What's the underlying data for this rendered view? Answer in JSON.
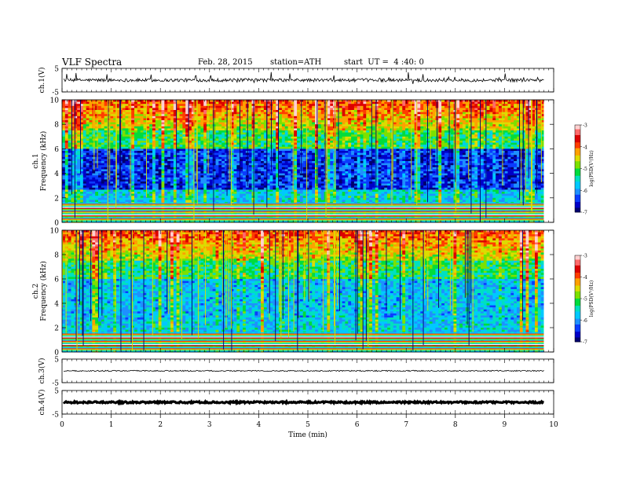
{
  "header": {
    "title": "VLF Spectra",
    "date": "Feb. 28, 2015",
    "station": "station=ATH",
    "start_ut": "start  UT =  4 :40: 0"
  },
  "colors": {
    "colormap": [
      "#000070",
      "#0000c8",
      "#0a3cff",
      "#1e90ff",
      "#00c8ff",
      "#00e0c0",
      "#00dc3c",
      "#7ce000",
      "#dcdc00",
      "#ffa000",
      "#ff3c00",
      "#dc0000",
      "#ff6a6a",
      "#ffd0d0"
    ]
  },
  "chart_data": [
    {
      "type": "line",
      "name": "ch.1(V)",
      "ylabel": "ch.1(V)",
      "ylim": [
        -5,
        5
      ],
      "yticks": [
        "5",
        "-5"
      ],
      "xlim": [
        0,
        10
      ],
      "trace_level": 0,
      "trace_amplitude": 0.7,
      "trace_spikes": true
    },
    {
      "type": "heatmap",
      "name": "ch.1",
      "ylabel": "ch.1\nFrequency (kHz)",
      "ylabel_lines": [
        "ch.1",
        "Frequency (kHz)"
      ],
      "ylim": [
        0,
        10
      ],
      "yticks": [
        "0",
        "2",
        "4",
        "6",
        "8",
        "10"
      ],
      "xlim": [
        0,
        10
      ],
      "data_end_min": 9.8,
      "colorbar": {
        "label": "log(PSD(V²/Hz)",
        "range": [
          -7,
          -3
        ],
        "ticks": [
          "-7",
          "-6",
          "-5",
          "-4",
          "-3"
        ]
      }
    },
    {
      "type": "heatmap",
      "name": "ch.2",
      "ylabel": "ch.2\nFrequency (kHz)",
      "ylabel_lines": [
        "ch.2",
        "Frequency (kHz)"
      ],
      "ylim": [
        0,
        10
      ],
      "yticks": [
        "0",
        "2",
        "4",
        "6",
        "8",
        "10"
      ],
      "xlim": [
        0,
        10
      ],
      "data_end_min": 9.8,
      "colorbar": {
        "label": "log(PSD(V²/Hz)",
        "range": [
          -7,
          -3
        ],
        "ticks": [
          "-7",
          "-6",
          "-5",
          "-4",
          "-3"
        ]
      }
    },
    {
      "type": "line",
      "name": "ch.3(V)",
      "ylabel": "ch.3(V)",
      "ylim": [
        -5,
        5
      ],
      "yticks": [
        "5",
        "-5"
      ],
      "xlim": [
        0,
        10
      ],
      "trace_level": 0,
      "trace_amplitude": 0.25,
      "trace_spikes": false
    },
    {
      "type": "line",
      "name": "ch.4(V)",
      "ylabel": "ch.4(V)",
      "ylim": [
        -5,
        5
      ],
      "yticks": [
        "5",
        "-5"
      ],
      "xlim": [
        0,
        10
      ],
      "trace_level": 0,
      "trace_amplitude": 0.35,
      "trace_spikes": false,
      "trace_thick": true
    }
  ],
  "xaxis": {
    "label": "Time (min)",
    "ticks": [
      "0",
      "1",
      "2",
      "3",
      "4",
      "5",
      "6",
      "7",
      "8",
      "9",
      "10"
    ]
  }
}
